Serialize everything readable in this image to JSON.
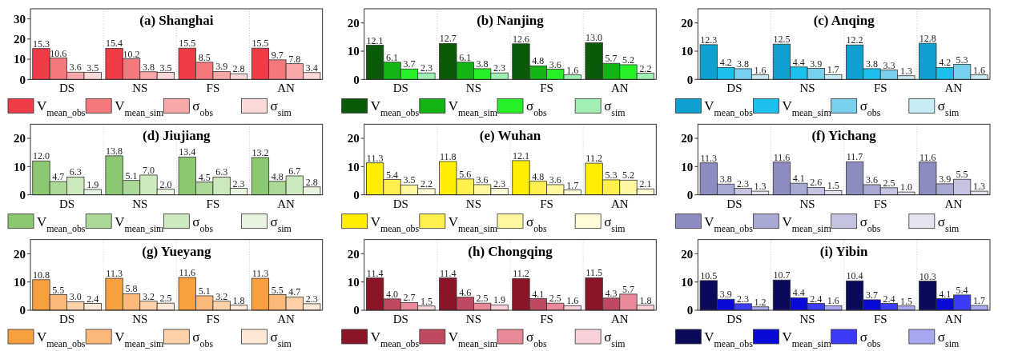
{
  "chart_data": [
    {
      "type": "bar",
      "title": "(a) Shanghai",
      "categories": [
        "DS",
        "NS",
        "FS",
        "AN"
      ],
      "ylim": [
        0,
        35
      ],
      "yticks": [
        0,
        10,
        20,
        30
      ],
      "data_labels": true,
      "legend": "bottom",
      "series": [
        {
          "name": "V$_{mean_obs}$",
          "color": "#f03c46",
          "values": [
            15.3,
            15.4,
            15.5,
            15.5
          ]
        },
        {
          "name": "V$_{mean_sim}$",
          "color": "#f4787c",
          "values": [
            10.6,
            10.2,
            8.5,
            9.7
          ]
        },
        {
          "name": "σ$_{obs}$",
          "color": "#f8a8a8",
          "values": [
            3.6,
            3.8,
            3.9,
            7.8
          ]
        },
        {
          "name": "σ$_{sim}$",
          "color": "#fcd8d8",
          "values": [
            3.5,
            3.5,
            2.8,
            3.4
          ]
        }
      ]
    },
    {
      "type": "bar",
      "title": "(b) Nanjing",
      "categories": [
        "DS",
        "NS",
        "FS",
        "AN"
      ],
      "ylim": [
        0,
        25
      ],
      "yticks": [
        0,
        10,
        20
      ],
      "data_labels": true,
      "legend": "bottom",
      "series": [
        {
          "name": "V$_{mean_obs}$",
          "color": "#0a5a0a",
          "values": [
            12.1,
            12.7,
            12.6,
            13.0
          ],
          "value_labels": [
            "12.1",
            "12.7",
            "12.6",
            "13.0"
          ]
        },
        {
          "name": "V$_{mean_sim}$",
          "color": "#14b414",
          "values": [
            6.1,
            6.1,
            4.8,
            5.7
          ]
        },
        {
          "name": "σ$_{obs}$",
          "color": "#28f028",
          "values": [
            3.7,
            3.8,
            3.6,
            5.2
          ]
        },
        {
          "name": "σ$_{sim}$",
          "color": "#a0f0b4",
          "values": [
            2.3,
            2.3,
            1.6,
            2.2
          ]
        }
      ]
    },
    {
      "type": "bar",
      "title": "(c) Anqing",
      "categories": [
        "DS",
        "NS",
        "FS",
        "AN"
      ],
      "ylim": [
        0,
        25
      ],
      "yticks": [
        0,
        10,
        20
      ],
      "data_labels": true,
      "legend": "bottom",
      "series": [
        {
          "name": "V$_{mean_obs}$",
          "color": "#0ea0d0",
          "values": [
            12.3,
            12.5,
            12.2,
            12.8
          ]
        },
        {
          "name": "V$_{mean_sim}$",
          "color": "#1cc0ec",
          "values": [
            4.2,
            4.4,
            3.8,
            4.2
          ]
        },
        {
          "name": "σ$_{obs}$",
          "color": "#78d0ec",
          "values": [
            3.8,
            3.9,
            3.3,
            5.3
          ]
        },
        {
          "name": "σ$_{sim}$",
          "color": "#c8ecf4",
          "values": [
            1.6,
            1.7,
            1.3,
            1.6
          ]
        }
      ]
    },
    {
      "type": "bar",
      "title": "(d) Jiujiang",
      "categories": [
        "DS",
        "NS",
        "FS",
        "AN"
      ],
      "ylim": [
        0,
        25
      ],
      "yticks": [
        0,
        10,
        20
      ],
      "data_labels": true,
      "legend": "bottom",
      "series": [
        {
          "name": "V$_{mean_obs}$",
          "color": "#8cc870",
          "values": [
            12.0,
            13.8,
            13.4,
            13.2
          ],
          "value_labels": [
            "12.0",
            "13.8",
            "13.4",
            "13.2"
          ]
        },
        {
          "name": "V$_{mean_sim}$",
          "color": "#acd898",
          "values": [
            4.7,
            5.1,
            4.5,
            4.8
          ]
        },
        {
          "name": "σ$_{obs}$",
          "color": "#cce8bc",
          "values": [
            6.3,
            7.0,
            6.3,
            6.7
          ],
          "value_labels": [
            "6.3",
            "7.0",
            "6.3",
            "6.7"
          ]
        },
        {
          "name": "σ$_{sim}$",
          "color": "#e8f4e0",
          "values": [
            1.9,
            2.0,
            2.3,
            2.8
          ],
          "value_labels": [
            "1.9",
            "2.0",
            "2.3",
            "2.8"
          ]
        }
      ]
    },
    {
      "type": "bar",
      "title": "(e) Wuhan",
      "categories": [
        "DS",
        "NS",
        "FS",
        "AN"
      ],
      "ylim": [
        0,
        25
      ],
      "yticks": [
        0,
        10,
        20
      ],
      "data_labels": true,
      "legend": "bottom",
      "series": [
        {
          "name": "V$_{mean_obs}$",
          "color": "#ffee00",
          "values": [
            11.3,
            11.8,
            12.1,
            11.2
          ]
        },
        {
          "name": "V$_{mean_sim}$",
          "color": "#fff050",
          "values": [
            5.4,
            5.6,
            4.8,
            5.3
          ]
        },
        {
          "name": "σ$_{obs}$",
          "color": "#fff8a0",
          "values": [
            3.5,
            3.6,
            3.6,
            5.2
          ]
        },
        {
          "name": "σ$_{sim}$",
          "color": "#fffcd8",
          "values": [
            2.2,
            2.3,
            1.7,
            2.1
          ]
        }
      ]
    },
    {
      "type": "bar",
      "title": "(f) Yichang",
      "categories": [
        "DS",
        "NS",
        "FS",
        "AN"
      ],
      "ylim": [
        0,
        25
      ],
      "yticks": [
        0,
        10,
        20
      ],
      "data_labels": true,
      "legend": "bottom",
      "series": [
        {
          "name": "V$_{mean_obs}$",
          "color": "#8c8cc0",
          "values": [
            11.3,
            11.6,
            11.7,
            11.6
          ]
        },
        {
          "name": "V$_{mean_sim}$",
          "color": "#a8a8d4",
          "values": [
            3.8,
            4.1,
            3.6,
            3.9
          ]
        },
        {
          "name": "σ$_{obs}$",
          "color": "#c4c4e0",
          "values": [
            2.3,
            2.6,
            2.5,
            5.5
          ]
        },
        {
          "name": "σ$_{sim}$",
          "color": "#e4e4f0",
          "values": [
            1.3,
            1.5,
            1.0,
            1.3
          ],
          "value_labels": [
            "1.3",
            "1.5",
            "1.0",
            "1.3"
          ]
        }
      ]
    },
    {
      "type": "bar",
      "title": "(g) Yueyang",
      "categories": [
        "DS",
        "NS",
        "FS",
        "AN"
      ],
      "ylim": [
        0,
        25
      ],
      "yticks": [
        0,
        10,
        20
      ],
      "data_labels": true,
      "legend": "bottom",
      "series": [
        {
          "name": "V$_{mean_obs}$",
          "color": "#f8a040",
          "values": [
            10.8,
            11.3,
            11.6,
            11.3
          ]
        },
        {
          "name": "V$_{mean_sim}$",
          "color": "#fcb878",
          "values": [
            5.5,
            5.8,
            5.1,
            5.5
          ]
        },
        {
          "name": "σ$_{obs}$",
          "color": "#fcd0a8",
          "values": [
            3.0,
            3.2,
            3.2,
            4.7
          ],
          "value_labels": [
            "3.0",
            "3.2",
            "3.2",
            "4.7"
          ]
        },
        {
          "name": "σ$_{sim}$",
          "color": "#fde8d8",
          "values": [
            2.4,
            2.5,
            1.8,
            2.3
          ]
        }
      ]
    },
    {
      "type": "bar",
      "title": "(h) Chongqing",
      "categories": [
        "DS",
        "NS",
        "FS",
        "AN"
      ],
      "ylim": [
        0,
        25
      ],
      "yticks": [
        0,
        10,
        20
      ],
      "data_labels": true,
      "legend": "bottom",
      "series": [
        {
          "name": "V$_{mean_obs}$",
          "color": "#8c1428",
          "values": [
            11.4,
            11.4,
            11.2,
            11.5
          ]
        },
        {
          "name": "V$_{mean_sim}$",
          "color": "#c04860",
          "values": [
            4.0,
            4.6,
            4.1,
            4.3
          ],
          "value_labels": [
            "4.0",
            "4.6",
            "4.1",
            "4.3"
          ]
        },
        {
          "name": "σ$_{obs}$",
          "color": "#e88898",
          "values": [
            2.7,
            2.5,
            2.5,
            5.7
          ]
        },
        {
          "name": "σ$_{sim}$",
          "color": "#f8d0d8",
          "values": [
            1.5,
            1.9,
            1.6,
            1.8
          ]
        }
      ]
    },
    {
      "type": "bar",
      "title": "(i) Yibin",
      "categories": [
        "DS",
        "NS",
        "FS",
        "AN"
      ],
      "ylim": [
        0,
        25
      ],
      "yticks": [
        0,
        10,
        20
      ],
      "data_labels": true,
      "legend": "bottom",
      "series": [
        {
          "name": "V$_{mean_obs}$",
          "color": "#0a0a5a",
          "values": [
            10.5,
            10.7,
            10.4,
            10.3
          ]
        },
        {
          "name": "V$_{mean_sim}$",
          "color": "#0a0ad8",
          "values": [
            3.9,
            4.4,
            3.7,
            4.1
          ]
        },
        {
          "name": "σ$_{obs}$",
          "color": "#3c3cf8",
          "values": [
            2.3,
            2.4,
            2.4,
            5.4
          ]
        },
        {
          "name": "σ$_{sim}$",
          "color": "#a8a8f0",
          "values": [
            1.2,
            1.6,
            1.5,
            1.7
          ]
        }
      ]
    }
  ]
}
